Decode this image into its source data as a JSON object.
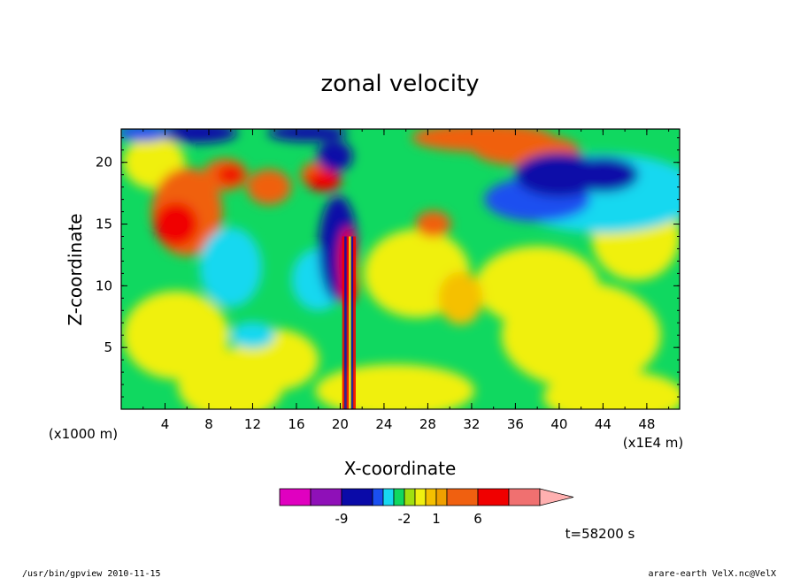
{
  "chart_data": {
    "type": "heatmap",
    "title": "zonal velocity",
    "xlabel": "X-coordinate",
    "ylabel": "Z-coordinate",
    "x_unit": "(x1E4 m)",
    "y_unit": "(x1000 m)",
    "xlim": [
      0,
      51
    ],
    "ylim": [
      0,
      22.7
    ],
    "x_ticks": [
      "4",
      "8",
      "12",
      "16",
      "20",
      "24",
      "28",
      "32",
      "36",
      "40",
      "44",
      "48"
    ],
    "y_ticks": [
      "5",
      "10",
      "15",
      "20"
    ],
    "colorbar": {
      "colors": [
        "#e000c0",
        "#8f10b8",
        "#0a0aa8",
        "#1a4ff0",
        "#18d8f0",
        "#10d860",
        "#a0e010",
        "#f0f010",
        "#f5c000",
        "#f0a000",
        "#f06010",
        "#f00000",
        "#f07070",
        "#ffb0b0"
      ],
      "tick_labels": [
        "-9",
        "-2",
        "1",
        "6"
      ]
    },
    "annotation": "t=58200 s",
    "footer_left": "/usr/bin/gpview  2010-11-15",
    "footer_right": "arare-earth_VelX.nc@VelX"
  }
}
